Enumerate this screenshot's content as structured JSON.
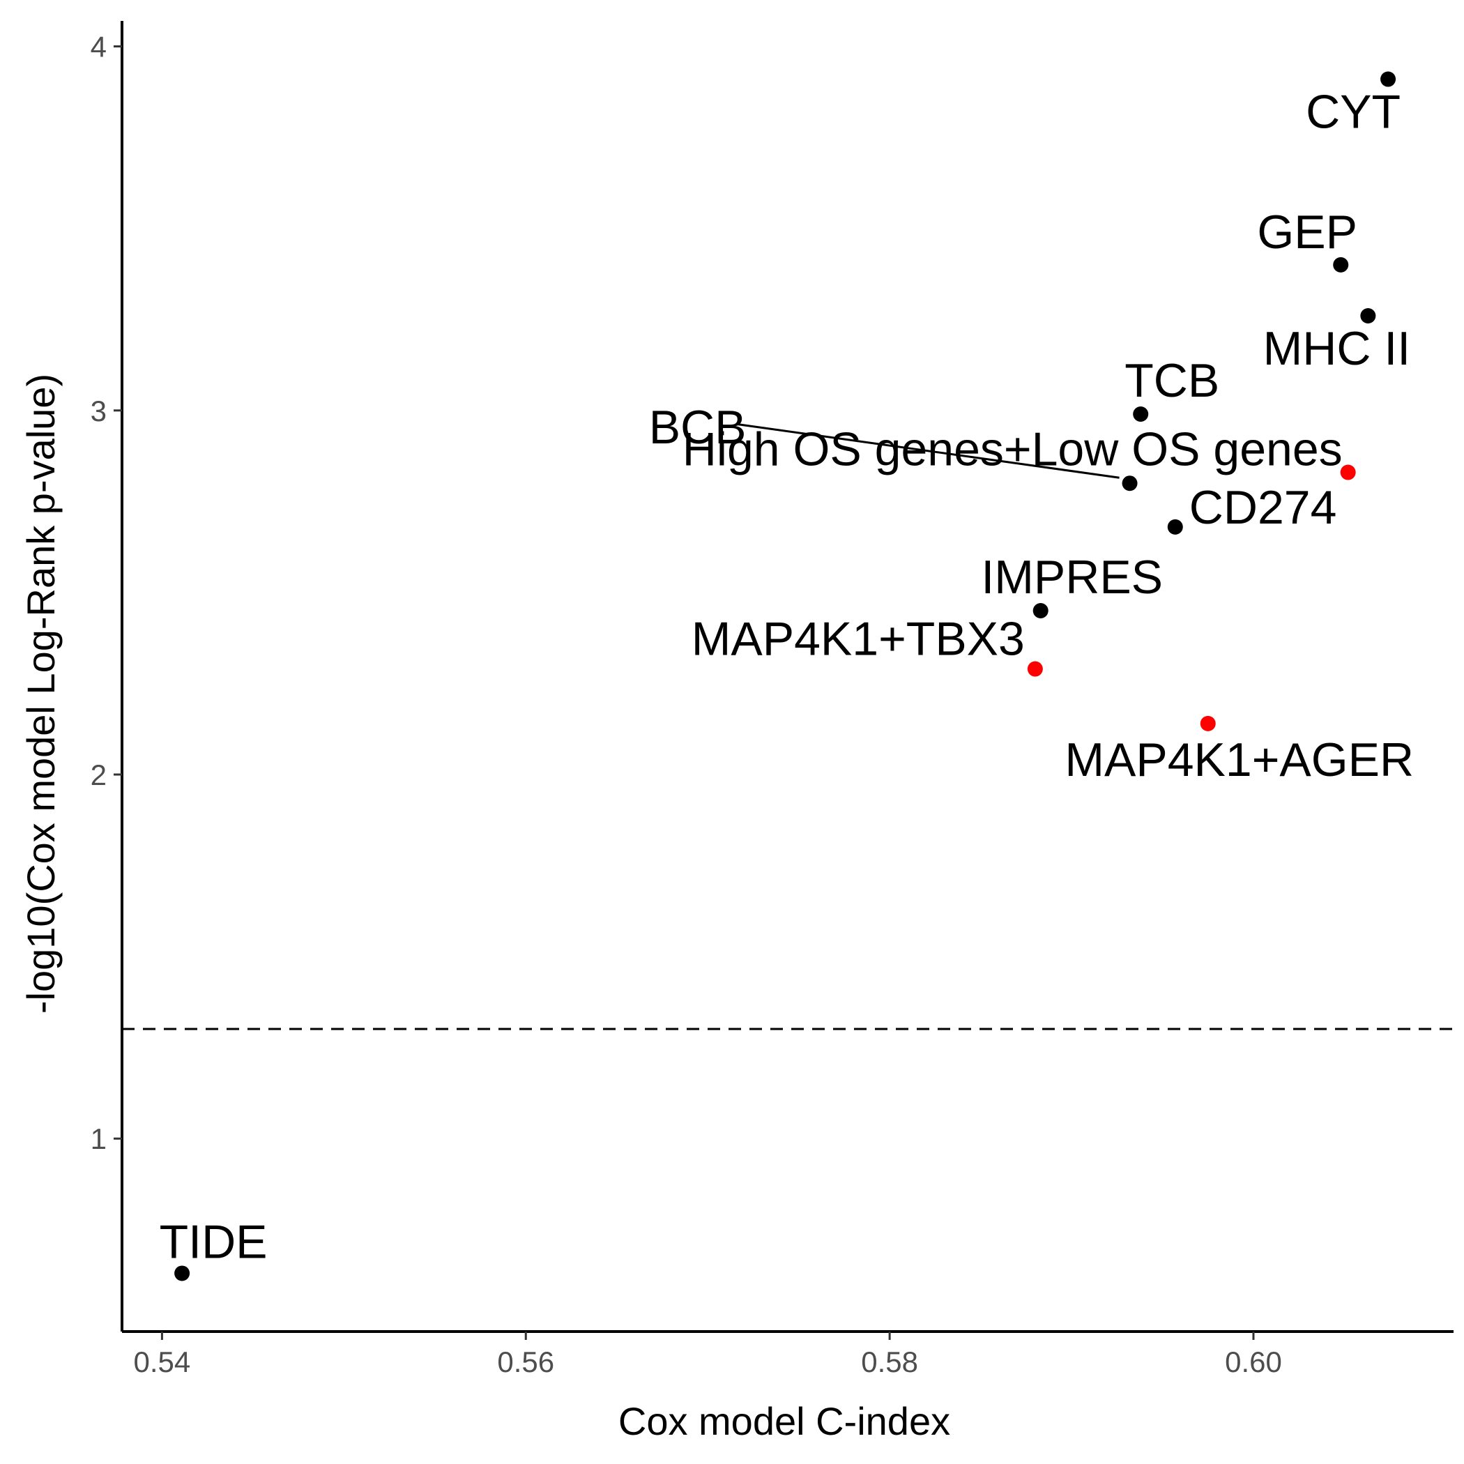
{
  "chart_data": {
    "type": "scatter",
    "title": "",
    "xlabel": "Cox model C-index",
    "ylabel": "-log10(Cox model Log-Rank p-value)",
    "xlim": [
      0.5378,
      0.611
    ],
    "ylim": [
      0.47,
      4.07
    ],
    "x_ticks": [
      0.54,
      0.56,
      0.58,
      0.6
    ],
    "x_tick_labels": [
      "0.54",
      "0.56",
      "0.58",
      "0.60"
    ],
    "y_ticks": [
      1,
      2,
      3,
      4
    ],
    "y_tick_labels": [
      "1",
      "2",
      "3",
      "4"
    ],
    "grid": false,
    "legend": "none",
    "reference_line": {
      "y": 1.301,
      "style": "dashed"
    },
    "colors": {
      "default": "#000000",
      "highlight": "#ff0000"
    },
    "points": [
      {
        "label": "CYT",
        "x": 0.6074,
        "y": 3.91,
        "highlight": false
      },
      {
        "label": "GEP",
        "x": 0.6048,
        "y": 3.4,
        "highlight": false
      },
      {
        "label": "MHC II",
        "x": 0.6063,
        "y": 3.26,
        "highlight": false
      },
      {
        "label": "TCB",
        "x": 0.5938,
        "y": 2.99,
        "highlight": false
      },
      {
        "label": "BCB",
        "x": 0.5932,
        "y": 2.8,
        "highlight": false
      },
      {
        "label": "High OS genes+Low OS genes",
        "x": 0.6052,
        "y": 2.83,
        "highlight": true
      },
      {
        "label": "CD274",
        "x": 0.5957,
        "y": 2.68,
        "highlight": false
      },
      {
        "label": "IMPRES",
        "x": 0.5883,
        "y": 2.45,
        "highlight": false
      },
      {
        "label": "MAP4K1+TBX3",
        "x": 0.588,
        "y": 2.29,
        "highlight": true
      },
      {
        "label": "MAP4K1+AGER",
        "x": 0.5975,
        "y": 2.14,
        "highlight": true
      },
      {
        "label": "TIDE",
        "x": 0.5411,
        "y": 0.63,
        "highlight": false
      }
    ]
  }
}
